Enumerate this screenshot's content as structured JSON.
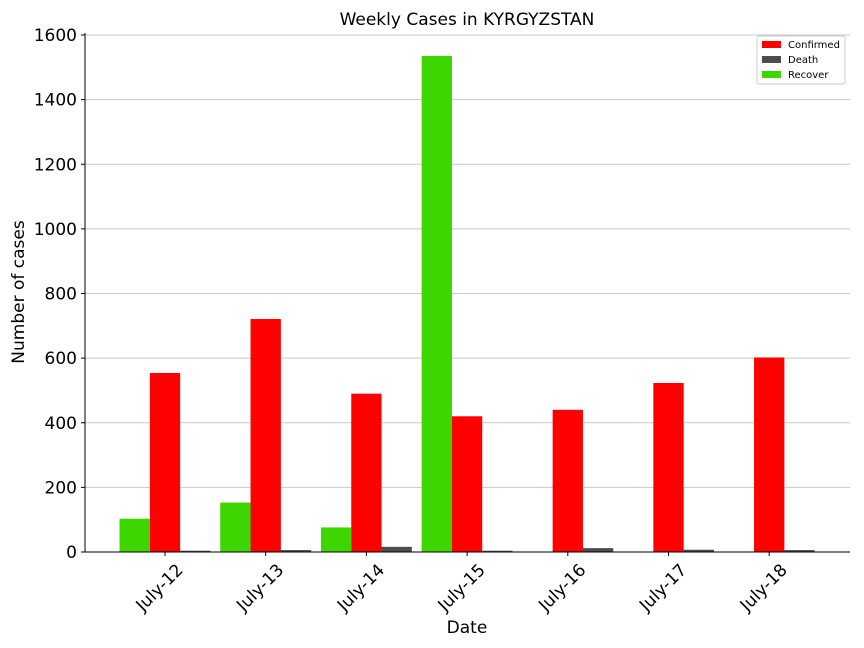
{
  "chart_data": {
    "type": "bar",
    "title": "Weekly Cases in KYRGYZSTAN",
    "xlabel": "Date",
    "ylabel": "Number of cases",
    "categories": [
      "July-12",
      "July-13",
      "July-14",
      "July-15",
      "July-16",
      "July-17",
      "July-18"
    ],
    "series": [
      {
        "name": "Recover",
        "color": "#3dd600",
        "values": [
          103,
          153,
          76,
          1535,
          0,
          0,
          0
        ]
      },
      {
        "name": "Confirmed",
        "color": "#ff0000",
        "values": [
          554,
          721,
          490,
          420,
          440,
          523,
          602
        ]
      },
      {
        "name": "Death",
        "color": "#4d4d4d",
        "values": [
          4,
          6,
          16,
          4,
          12,
          7,
          6
        ]
      }
    ],
    "legend_order": [
      "Confirmed",
      "Death",
      "Recover"
    ],
    "ylim": [
      0,
      1600
    ],
    "yticks": [
      0,
      200,
      400,
      600,
      800,
      1000,
      1200,
      1400,
      1600
    ],
    "grid": "horizontal",
    "legend_position": "top-right"
  }
}
